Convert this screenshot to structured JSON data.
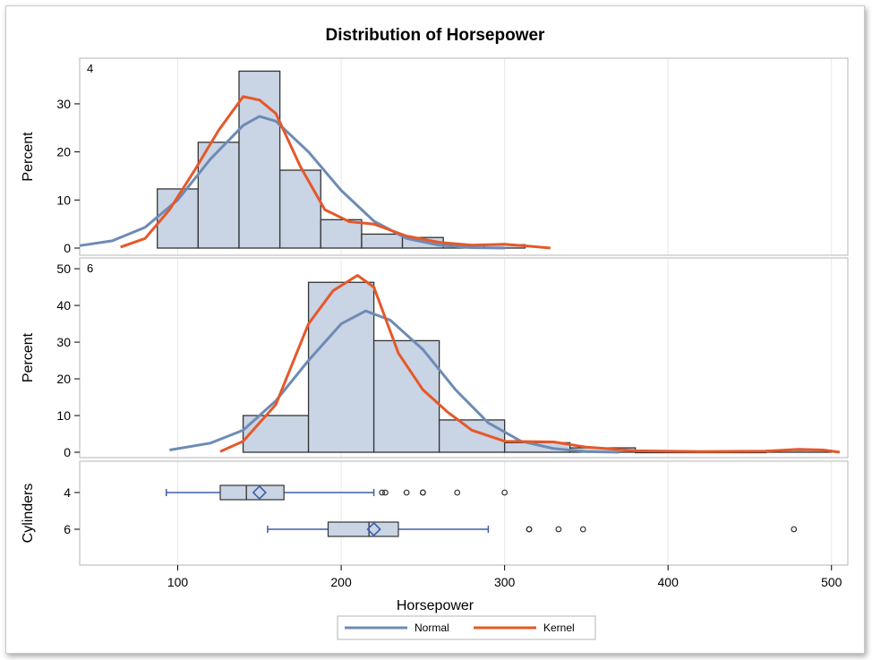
{
  "chart_data": {
    "type": "histogram-panel",
    "title": "Distribution of Horsepower",
    "xlabel": "Horsepower",
    "xlim": [
      40,
      510
    ],
    "xticks": [
      100,
      200,
      300,
      400,
      500
    ],
    "colors": {
      "bar": "#c9d4e4",
      "normal": "#6d8bb5",
      "kernel": "#e5582a",
      "box": "#3f5ea8"
    },
    "panels": [
      {
        "label": "4",
        "ylabel": "Percent",
        "ylim": [
          0,
          38
        ],
        "yticks": [
          0,
          10,
          20,
          30
        ],
        "bin_edges": [
          87.5,
          112.5,
          137.5,
          162.5,
          187.5,
          212.5,
          237.5,
          262.5,
          287.5,
          312.5
        ],
        "values": [
          12.3,
          22.0,
          36.8,
          16.2,
          5.9,
          2.9,
          2.2,
          0.7,
          0.7
        ],
        "normal": [
          [
            40,
            0.5
          ],
          [
            60,
            1.5
          ],
          [
            80,
            4.3
          ],
          [
            100,
            10
          ],
          [
            120,
            18.5
          ],
          [
            140,
            25.5
          ],
          [
            150,
            27.4
          ],
          [
            160,
            26.4
          ],
          [
            180,
            20
          ],
          [
            200,
            12
          ],
          [
            220,
            5.6
          ],
          [
            240,
            2
          ],
          [
            260,
            0.6
          ],
          [
            280,
            0.1
          ],
          [
            300,
            0
          ]
        ],
        "kernel": [
          [
            65,
            0.2
          ],
          [
            80,
            2
          ],
          [
            95,
            8
          ],
          [
            110,
            16
          ],
          [
            125,
            24.5
          ],
          [
            140,
            31.5
          ],
          [
            150,
            30.8
          ],
          [
            160,
            28
          ],
          [
            175,
            17
          ],
          [
            190,
            8
          ],
          [
            205,
            5.5
          ],
          [
            220,
            5
          ],
          [
            240,
            2.5
          ],
          [
            260,
            1.2
          ],
          [
            280,
            0.6
          ],
          [
            300,
            0.8
          ],
          [
            315,
            0.4
          ],
          [
            328,
            0
          ]
        ]
      },
      {
        "label": "6",
        "ylabel": "Percent",
        "ylim": [
          0,
          51
        ],
        "yticks": [
          0,
          10,
          20,
          30,
          40,
          50
        ],
        "bin_edges": [
          140,
          180,
          220,
          260,
          300,
          340,
          380,
          420,
          460,
          500
        ],
        "values": [
          10.0,
          46.3,
          30.4,
          8.8,
          2.6,
          1.2,
          0,
          0,
          0.5
        ],
        "normal": [
          [
            95,
            0.6
          ],
          [
            120,
            2.5
          ],
          [
            140,
            6
          ],
          [
            160,
            14
          ],
          [
            180,
            25
          ],
          [
            200,
            35
          ],
          [
            215,
            38.5
          ],
          [
            230,
            36
          ],
          [
            250,
            28
          ],
          [
            270,
            17
          ],
          [
            290,
            8
          ],
          [
            310,
            3
          ],
          [
            330,
            1
          ],
          [
            350,
            0.2
          ],
          [
            370,
            0
          ]
        ],
        "kernel": [
          [
            126,
            0.2
          ],
          [
            140,
            3
          ],
          [
            160,
            13
          ],
          [
            180,
            35
          ],
          [
            195,
            44
          ],
          [
            210,
            48.2
          ],
          [
            220,
            45
          ],
          [
            235,
            27
          ],
          [
            250,
            17
          ],
          [
            265,
            11
          ],
          [
            280,
            6
          ],
          [
            300,
            3
          ],
          [
            330,
            2.8
          ],
          [
            350,
            1.4
          ],
          [
            380,
            0.4
          ],
          [
            420,
            0.2
          ],
          [
            460,
            0.3
          ],
          [
            480,
            0.8
          ],
          [
            495,
            0.6
          ],
          [
            505,
            0
          ]
        ]
      }
    ],
    "boxplot": {
      "ylabel": "Cylinders",
      "groups": [
        {
          "label": "4",
          "whisker_low": 93,
          "q1": 126,
          "median": 142,
          "mean": 150,
          "q3": 165,
          "whisker_high": 220,
          "outliers": [
            225,
            227,
            240,
            250,
            250,
            271,
            300
          ]
        },
        {
          "label": "6",
          "whisker_low": 155,
          "q1": 192,
          "median": 217,
          "mean": 220,
          "q3": 235,
          "whisker_high": 290,
          "outliers": [
            315,
            315,
            333,
            348,
            477
          ]
        }
      ]
    },
    "legend": {
      "position": "bottom",
      "entries": [
        "Normal",
        "Kernel"
      ]
    }
  }
}
